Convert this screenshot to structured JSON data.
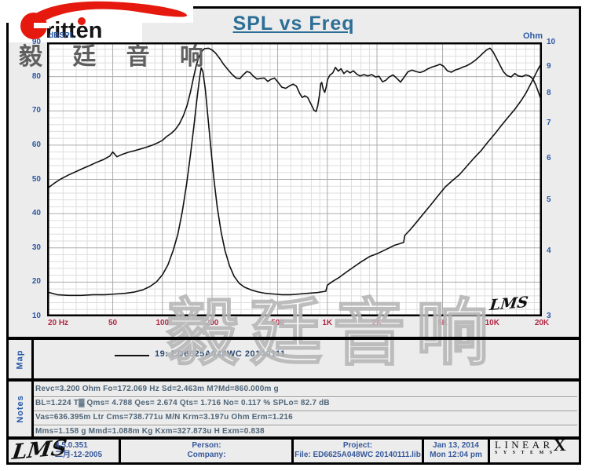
{
  "logo": {
    "brand_text": "ritten",
    "chinese": "毅 廷 音 响"
  },
  "title": "SPL vs Freq",
  "plot_logo": "LMS",
  "watermark": "毅廷音响",
  "chart_data": {
    "type": "line",
    "title": "SPL vs Freq",
    "grid": true,
    "x_axis": {
      "label": "Hz",
      "scale": "log",
      "min": 20,
      "max": 20000,
      "ticks": [
        20,
        50,
        100,
        200,
        500,
        1000,
        2000,
        5000,
        10000,
        20000
      ],
      "tick_labels": [
        "20 Hz",
        "50",
        "100",
        "200",
        "500",
        "1K",
        "2K",
        "5K",
        "10K",
        "20K"
      ],
      "minor": [
        25,
        30,
        35,
        40,
        45,
        60,
        70,
        80,
        90,
        120,
        140,
        160,
        180,
        250,
        300,
        350,
        400,
        450,
        600,
        700,
        800,
        900,
        1200,
        1400,
        1600,
        1800,
        2500,
        3000,
        3500,
        4000,
        4500,
        6000,
        7000,
        8000,
        9000,
        12000,
        14000,
        16000,
        18000
      ]
    },
    "y_left": {
      "label": "dBSPL",
      "scale": "linear",
      "min": 10,
      "max": 90,
      "ticks": [
        90,
        80,
        70,
        60,
        50,
        40,
        30,
        20,
        10
      ],
      "minor_step": 2
    },
    "y_right": {
      "label": "Ohm",
      "scale": "log",
      "min": 3,
      "max": 10,
      "ticks": [
        10,
        9,
        8,
        7,
        6,
        5,
        4,
        3
      ]
    },
    "legend_position": "map-panel",
    "series": [
      {
        "name": "19: ED6625A048WC 20140111 (SPL, dBSPL)",
        "axis": "left",
        "color": "#111111",
        "points": [
          [
            20,
            47.3
          ],
          [
            22,
            48.8
          ],
          [
            24,
            50
          ],
          [
            27,
            51.3
          ],
          [
            30,
            52.3
          ],
          [
            33,
            53.2
          ],
          [
            36,
            54
          ],
          [
            40,
            55
          ],
          [
            44,
            55.8
          ],
          [
            48,
            56.8
          ],
          [
            50,
            58
          ],
          [
            53,
            56.6
          ],
          [
            57,
            57.3
          ],
          [
            62,
            57.9
          ],
          [
            68,
            58.4
          ],
          [
            74,
            58.9
          ],
          [
            80,
            59.4
          ],
          [
            87,
            60
          ],
          [
            94,
            60.7
          ],
          [
            100,
            61.4
          ],
          [
            106,
            62.5
          ],
          [
            113,
            63.4
          ],
          [
            120,
            64.6
          ],
          [
            127,
            66.3
          ],
          [
            134,
            68.6
          ],
          [
            141,
            71.5
          ],
          [
            148,
            75.5
          ],
          [
            154,
            79.5
          ],
          [
            160,
            83
          ],
          [
            166,
            85.6
          ],
          [
            172,
            87.2
          ],
          [
            180,
            88.2
          ],
          [
            190,
            88.3
          ],
          [
            200,
            87.8
          ],
          [
            210,
            86.9
          ],
          [
            222,
            85.4
          ],
          [
            235,
            83.6
          ],
          [
            250,
            82
          ],
          [
            265,
            80.6
          ],
          [
            280,
            79.6
          ],
          [
            295,
            79.4
          ],
          [
            310,
            80.6
          ],
          [
            325,
            81.5
          ],
          [
            340,
            81.2
          ],
          [
            355,
            80.2
          ],
          [
            375,
            79.3
          ],
          [
            395,
            79.5
          ],
          [
            415,
            79.6
          ],
          [
            435,
            78.6
          ],
          [
            455,
            79.2
          ],
          [
            478,
            79.6
          ],
          [
            500,
            78.5
          ],
          [
            530,
            76.9
          ],
          [
            560,
            76.6
          ],
          [
            590,
            77.3
          ],
          [
            620,
            77.8
          ],
          [
            650,
            77.2
          ],
          [
            680,
            75.1
          ],
          [
            705,
            73.9
          ],
          [
            730,
            74.4
          ],
          [
            760,
            73.9
          ],
          [
            800,
            71.8
          ],
          [
            830,
            70.2
          ],
          [
            855,
            69.8
          ],
          [
            875,
            71.5
          ],
          [
            895,
            74.5
          ],
          [
            912,
            77.9
          ],
          [
            925,
            78.3
          ],
          [
            945,
            76.3
          ],
          [
            965,
            75.4
          ],
          [
            985,
            77
          ],
          [
            1005,
            79.2
          ],
          [
            1035,
            80.4
          ],
          [
            1080,
            81.1
          ],
          [
            1120,
            82.7
          ],
          [
            1165,
            81.6
          ],
          [
            1210,
            82.3
          ],
          [
            1260,
            80.9
          ],
          [
            1315,
            81.7
          ],
          [
            1375,
            81.1
          ],
          [
            1440,
            81.7
          ],
          [
            1510,
            80.7
          ],
          [
            1580,
            80.2
          ],
          [
            1670,
            80.6
          ],
          [
            1760,
            80.2
          ],
          [
            1860,
            80.6
          ],
          [
            1960,
            79.9
          ],
          [
            2060,
            80.1
          ],
          [
            2160,
            78.5
          ],
          [
            2260,
            78.9
          ],
          [
            2370,
            79.9
          ],
          [
            2500,
            80.5
          ],
          [
            2650,
            79.4
          ],
          [
            2780,
            78.4
          ],
          [
            2920,
            79.8
          ],
          [
            3080,
            81.4
          ],
          [
            3260,
            81.9
          ],
          [
            3450,
            81.5
          ],
          [
            3650,
            81.2
          ],
          [
            3860,
            81.6
          ],
          [
            4080,
            82.3
          ],
          [
            4320,
            82.8
          ],
          [
            4570,
            83.2
          ],
          [
            4830,
            83.6
          ],
          [
            5080,
            83
          ],
          [
            5350,
            81.7
          ],
          [
            5650,
            81.3
          ],
          [
            5950,
            81.9
          ],
          [
            6300,
            82.3
          ],
          [
            6650,
            82.8
          ],
          [
            7000,
            83.2
          ],
          [
            7400,
            83.8
          ],
          [
            7850,
            84.7
          ],
          [
            8350,
            85.8
          ],
          [
            8850,
            87
          ],
          [
            9300,
            87.9
          ],
          [
            9700,
            88.3
          ],
          [
            10100,
            87.3
          ],
          [
            10600,
            85.4
          ],
          [
            11100,
            83.5
          ],
          [
            11700,
            81.4
          ],
          [
            12300,
            80.3
          ],
          [
            13000,
            79.9
          ],
          [
            13700,
            80.9
          ],
          [
            14400,
            80.2
          ],
          [
            15200,
            80
          ],
          [
            16000,
            80.5
          ],
          [
            16800,
            80.2
          ],
          [
            17600,
            79.4
          ],
          [
            18400,
            77.5
          ],
          [
            19200,
            75
          ],
          [
            20000,
            72.6
          ]
        ]
      },
      {
        "name": "Impedance (Ohm)",
        "axis": "right",
        "color": "#111111",
        "points": [
          [
            20,
            3.34
          ],
          [
            23,
            3.3
          ],
          [
            27,
            3.29
          ],
          [
            32,
            3.29
          ],
          [
            38,
            3.3
          ],
          [
            45,
            3.3
          ],
          [
            52,
            3.31
          ],
          [
            60,
            3.32
          ],
          [
            68,
            3.34
          ],
          [
            76,
            3.37
          ],
          [
            84,
            3.42
          ],
          [
            92,
            3.49
          ],
          [
            100,
            3.6
          ],
          [
            108,
            3.76
          ],
          [
            116,
            4.0
          ],
          [
            124,
            4.3
          ],
          [
            132,
            4.75
          ],
          [
            140,
            5.35
          ],
          [
            148,
            6.1
          ],
          [
            155,
            6.9
          ],
          [
            162,
            7.8
          ],
          [
            168,
            8.55
          ],
          [
            172,
            8.95
          ],
          [
            176,
            8.8
          ],
          [
            182,
            8.15
          ],
          [
            188,
            7.3
          ],
          [
            196,
            6.35
          ],
          [
            205,
            5.5
          ],
          [
            215,
            4.85
          ],
          [
            227,
            4.35
          ],
          [
            240,
            4.0
          ],
          [
            255,
            3.75
          ],
          [
            272,
            3.58
          ],
          [
            292,
            3.47
          ],
          [
            315,
            3.41
          ],
          [
            345,
            3.37
          ],
          [
            380,
            3.34
          ],
          [
            420,
            3.32
          ],
          [
            470,
            3.31
          ],
          [
            530,
            3.3
          ],
          [
            600,
            3.3
          ],
          [
            680,
            3.31
          ],
          [
            770,
            3.32
          ],
          [
            870,
            3.33
          ],
          [
            980,
            3.35
          ],
          [
            1000,
            3.44
          ],
          [
            1080,
            3.5
          ],
          [
            1180,
            3.56
          ],
          [
            1300,
            3.64
          ],
          [
            1450,
            3.73
          ],
          [
            1600,
            3.81
          ],
          [
            1800,
            3.9
          ],
          [
            2000,
            3.95
          ],
          [
            2250,
            4.02
          ],
          [
            2550,
            4.1
          ],
          [
            2900,
            4.15
          ],
          [
            2950,
            4.28
          ],
          [
            3200,
            4.4
          ],
          [
            3500,
            4.55
          ],
          [
            3850,
            4.72
          ],
          [
            4250,
            4.9
          ],
          [
            4700,
            5.1
          ],
          [
            5200,
            5.3
          ],
          [
            5750,
            5.45
          ],
          [
            6350,
            5.6
          ],
          [
            7000,
            5.8
          ],
          [
            7700,
            6.0
          ],
          [
            8500,
            6.2
          ],
          [
            9400,
            6.45
          ],
          [
            10400,
            6.7
          ],
          [
            11400,
            6.95
          ],
          [
            12500,
            7.2
          ],
          [
            13700,
            7.45
          ],
          [
            15000,
            7.75
          ],
          [
            16000,
            8.0
          ],
          [
            17000,
            8.3
          ],
          [
            18000,
            8.6
          ],
          [
            19000,
            8.9
          ],
          [
            20000,
            9.15
          ]
        ]
      }
    ]
  },
  "map": {
    "label": "Map",
    "legend": "19: ED6625A048WC   20140111"
  },
  "notes": {
    "label": "Notes",
    "lines": [
      "Revc=3.200 Ohm  Fo=172.069 Hz  Sd=2.463m M?Md=860.000m g",
      "BL=1.224 T▓  Qms= 4.788  Qes= 2.674  Qts= 1.716  No= 0.117 %  SPLo= 82.7 dB",
      "Vas=636.395m Ltr  Cms=738.771u M/N  Krm=3.197u Ohm  Erm=1.216",
      "Mms=1.158 g  Mmd=1.088m Kg  Kxm=327.873u H  Exm=0.838"
    ]
  },
  "footer": {
    "lms_logo": "LMS",
    "version": "4.5.0.351",
    "version_date": "二月-12-2005",
    "person_label": "Person:",
    "company_label": "Company:",
    "project_label": "Project:",
    "file_label": "File: ED6625A048WC  20140111.lib",
    "date": "Jan 13, 2014",
    "time": "Mon 12:04 pm",
    "linearx": {
      "word": "LINEAR",
      "x": "X",
      "sub": "SYSTEMS"
    }
  },
  "colors": {
    "title": "#2c6e96",
    "axis_blue": "#2d58a5",
    "axis_red": "#b22744",
    "logo_red": "#e6190e",
    "background": "#ececec",
    "curve": "#111111"
  }
}
